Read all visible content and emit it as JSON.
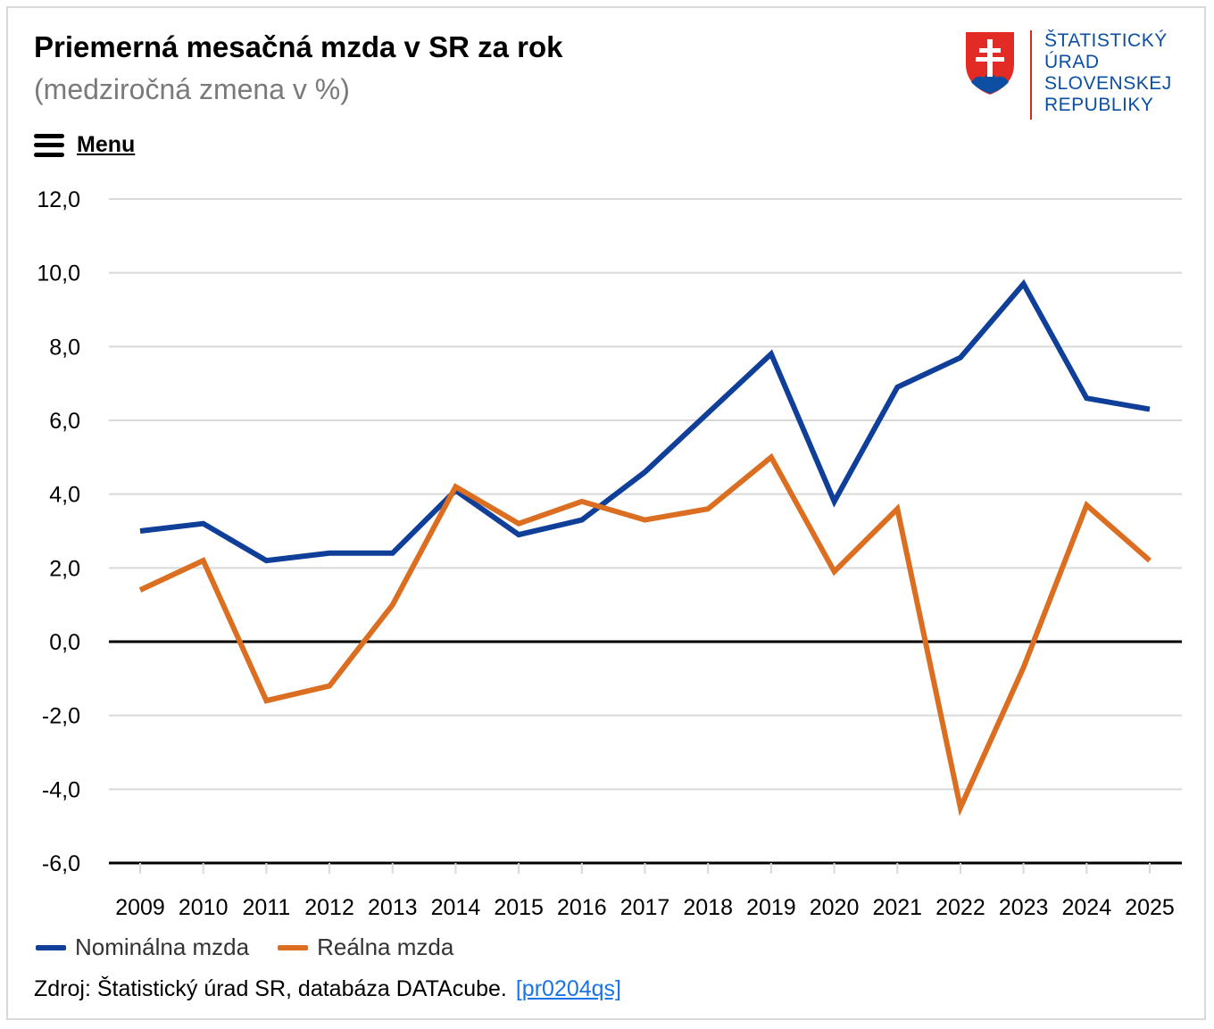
{
  "header": {
    "title": "Priemerná mesačná mzda v SR za rok",
    "subtitle": "(medziročná zmena v %)"
  },
  "menu": {
    "label": "Menu",
    "icon": "hamburger-menu-icon"
  },
  "logo": {
    "icon": "slovak-coat-of-arms-icon",
    "lines": [
      "ŠTATISTICKÝ",
      "ÚRAD",
      "SLOVENSKEJ",
      "REPUBLIKY"
    ]
  },
  "colors": {
    "nominal": "#0f3f99",
    "real": "#db6e20",
    "grid": "#d9d9d9",
    "axis": "#000000"
  },
  "chart_data": {
    "type": "line",
    "title": "Priemerná mesačná mzda v SR za rok",
    "subtitle": "(medziročná zmena v %)",
    "xlabel": "",
    "ylabel": "",
    "categories": [
      "2009",
      "2010",
      "2011",
      "2012",
      "2013",
      "2014",
      "2015",
      "2016",
      "2017",
      "2018",
      "2019",
      "2020",
      "2021",
      "2022",
      "2023",
      "2024",
      "2025"
    ],
    "ylim": [
      -6,
      12
    ],
    "yticks": [
      12,
      10,
      8,
      6,
      4,
      2,
      0,
      -2,
      -4,
      -6
    ],
    "ytick_labels": [
      "12,0",
      "10,0",
      "8,0",
      "6,0",
      "4,0",
      "2,0",
      "0,0",
      "-2,0",
      "-4,0",
      "-6,0"
    ],
    "grid": true,
    "legend_position": "bottom-left",
    "series": [
      {
        "name": "Nominálna mzda",
        "values": [
          3.0,
          3.2,
          2.2,
          2.4,
          2.4,
          4.1,
          2.9,
          3.3,
          4.6,
          6.2,
          7.8,
          3.8,
          6.9,
          7.7,
          9.7,
          6.6,
          6.3
        ]
      },
      {
        "name": "Reálna mzda",
        "values": [
          1.4,
          2.2,
          -1.6,
          -1.2,
          1.0,
          4.2,
          3.2,
          3.8,
          3.3,
          3.6,
          5.0,
          1.9,
          3.6,
          -4.5,
          -0.7,
          3.7,
          2.2
        ]
      }
    ]
  },
  "source": {
    "text": "Zdroj: Štatistický úrad SR, databáza DATAcube.",
    "link": "[pr0204qs]"
  }
}
